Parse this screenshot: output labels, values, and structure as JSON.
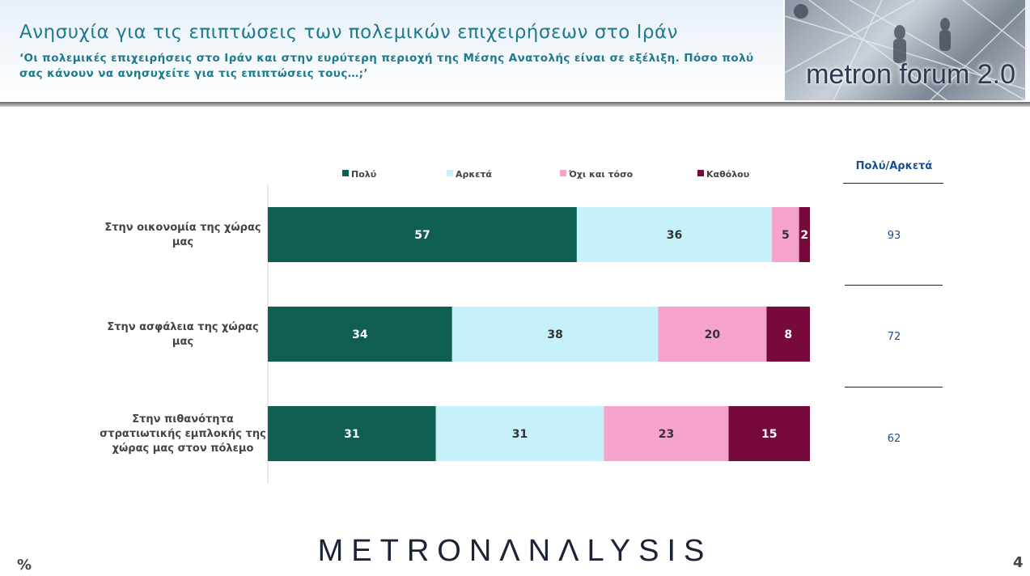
{
  "header": {
    "title": "Ανησυχία για τις επιπτώσεις των πολεμικών επιχειρήσεων στο Ιράν",
    "subtitle": "‘Οι πολεμικές επιχειρήσεις στο Ιράν και στην ευρύτερη περιοχή της Μέσης Ανατολής είναι σε εξέλιξη. Πόσο πολύ σας κάνουν να ανησυχείτε για τις επιπτώσεις τους…;’",
    "logo_text": "metron forum 2.0"
  },
  "chart_data": {
    "type": "bar",
    "orientation": "horizontal",
    "stacked": true,
    "unit": "%",
    "categories": [
      "Στην οικονομία της χώρας μας",
      "Στην ασφάλεια της χώρας μας",
      "Στην πιθανότητα στρατιωτικής εμπλοκής της χώρας μας στον πόλεμο"
    ],
    "series": [
      {
        "name": "Πολύ",
        "color": "#0f5e52",
        "values": [
          57,
          34,
          31
        ]
      },
      {
        "name": "Αρκετά",
        "color": "#c6f1fb",
        "values": [
          36,
          38,
          31
        ]
      },
      {
        "name": "Όχι και τόσο",
        "color": "#f5a3cc",
        "values": [
          5,
          20,
          23
        ]
      },
      {
        "name": "Καθόλου",
        "color": "#770a3b",
        "values": [
          2,
          8,
          15
        ]
      }
    ],
    "xlim": [
      0,
      100
    ],
    "legend_position": "top",
    "grid": false
  },
  "summary": {
    "header": "Πολύ/Αρκετά",
    "values": [
      "93",
      "72",
      "62"
    ]
  },
  "footer": {
    "brand": "METRONΛNΛLYSIS",
    "unit_label": "%",
    "page_number": "4"
  }
}
